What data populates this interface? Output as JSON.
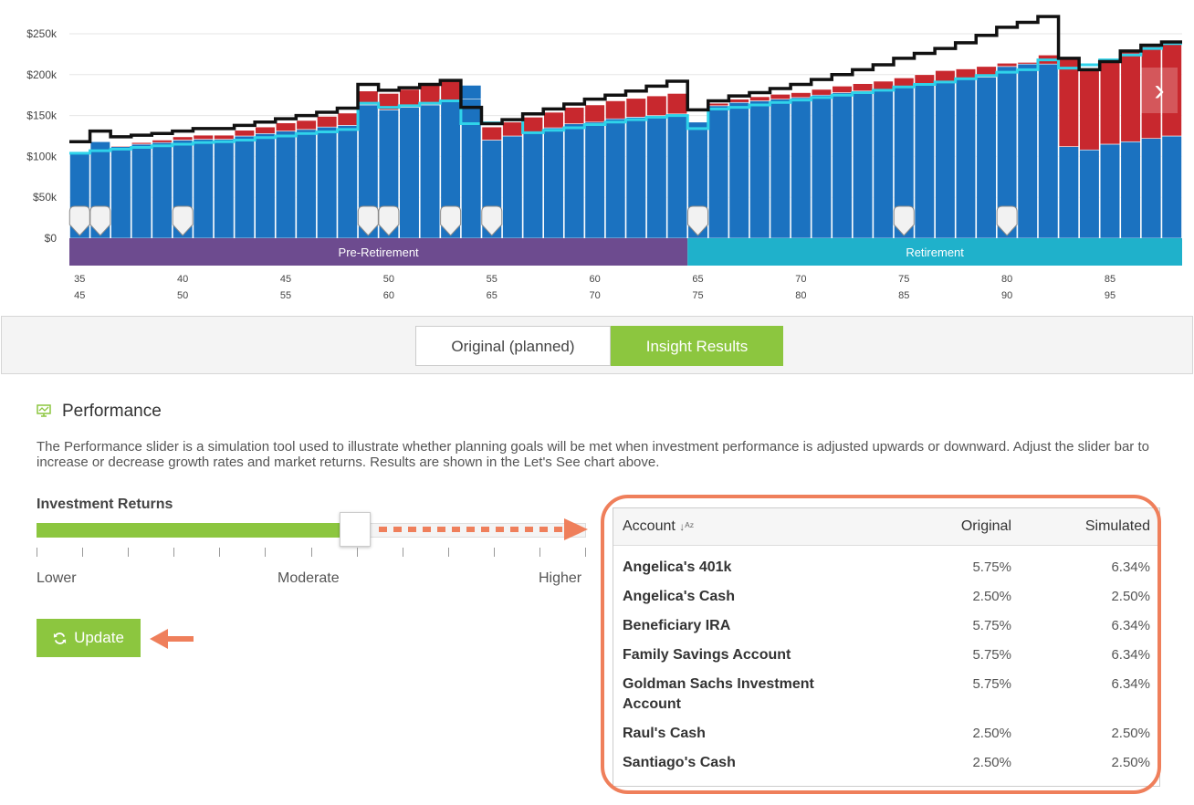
{
  "chart_data": {
    "type": "bar",
    "stacked": true,
    "y_ticks": [
      "$250k",
      "$200k",
      "$150k",
      "$100k",
      "$50k",
      "$0"
    ],
    "ylim": [
      0,
      250000
    ],
    "x_axis_rows": [
      [
        "35",
        "40",
        "45",
        "50",
        "55",
        "60",
        "65",
        "70",
        "75",
        "80",
        "85"
      ],
      [
        "45",
        "50",
        "55",
        "60",
        "65",
        "70",
        "75",
        "80",
        "85",
        "90",
        "95"
      ]
    ],
    "x_start": 35,
    "x_end": 89,
    "phases": [
      {
        "label": "Pre-Retirement",
        "start": 35,
        "end": 65,
        "color": "#6d4b8f"
      },
      {
        "label": "Retirement",
        "start": 65,
        "end": 89,
        "color": "#1fb1cb"
      }
    ],
    "series": [
      {
        "color": "#1b72c0",
        "values": [
          104000,
          118000,
          112000,
          115000,
          117000,
          120000,
          121000,
          121000,
          125000,
          128000,
          131000,
          133000,
          136000,
          138000,
          163000,
          157000,
          160000,
          163000,
          168000,
          170000,
          120000,
          125000,
          130000,
          135000,
          140000,
          142000,
          146000,
          148000,
          150000,
          152000,
          142000,
          162000,
          166000,
          168000,
          170000,
          172000,
          175000,
          178000,
          180000,
          182000,
          185000,
          188000,
          192000,
          195000,
          197000,
          210000,
          213000,
          213000,
          112000,
          108000,
          115000,
          118000,
          122000,
          125000
        ]
      },
      {
        "color": "#c8282e",
        "values": [
          0,
          0,
          1000,
          2000,
          3000,
          4000,
          5000,
          5000,
          7000,
          8000,
          10000,
          11000,
          13000,
          15000,
          17000,
          20000,
          22000,
          24000,
          25000,
          0,
          16000,
          17000,
          18000,
          19000,
          20000,
          21000,
          22000,
          23000,
          24000,
          25000,
          0,
          3000,
          4000,
          5000,
          6000,
          6000,
          7000,
          8000,
          9000,
          10000,
          11000,
          12000,
          13000,
          12000,
          13000,
          4000,
          2000,
          11000,
          108000,
          98000,
          101000,
          111000,
          114000,
          115000
        ]
      },
      {
        "color": "#1b72c0",
        "values": [
          0,
          0,
          0,
          0,
          0,
          0,
          0,
          0,
          0,
          0,
          0,
          0,
          0,
          0,
          0,
          0,
          0,
          0,
          0,
          17000,
          0,
          0,
          0,
          0,
          0,
          0,
          0,
          0,
          0,
          0,
          0,
          0,
          0,
          0,
          0,
          0,
          0,
          0,
          0,
          0,
          0,
          0,
          0,
          0,
          0,
          0,
          0,
          0,
          0,
          0,
          0,
          0,
          0,
          0
        ]
      }
    ],
    "line_series": [
      {
        "color": "#2fd3ea",
        "values": [
          104000,
          107000,
          109000,
          111000,
          113000,
          115000,
          117000,
          118000,
          120000,
          123000,
          125000,
          128000,
          130000,
          133000,
          165000,
          160000,
          162000,
          165000,
          168000,
          140000,
          141000,
          145000,
          129000,
          132000,
          135000,
          139000,
          142000,
          145000,
          148000,
          150000,
          134000,
          158000,
          160000,
          163000,
          166000,
          169000,
          172000,
          175000,
          178000,
          181000,
          185000,
          188000,
          191000,
          195000,
          199000,
          203000,
          206000,
          218000,
          208000,
          212000,
          218000,
          224000,
          232000,
          238000
        ]
      },
      {
        "color": "#111111",
        "values": [
          118000,
          131000,
          124000,
          126000,
          128000,
          131000,
          134000,
          134000,
          138000,
          142000,
          146000,
          150000,
          154000,
          159000,
          188000,
          181000,
          184000,
          188000,
          193000,
          160000,
          140000,
          145000,
          152000,
          158000,
          164000,
          170000,
          175000,
          180000,
          186000,
          192000,
          157000,
          168000,
          174000,
          178000,
          183000,
          188000,
          194000,
          200000,
          206000,
          212000,
          220000,
          226000,
          232000,
          239000,
          248000,
          258000,
          264000,
          271000,
          220000,
          206000,
          216000,
          229000,
          236000,
          240000
        ]
      }
    ],
    "event_markers_at_age": [
      35,
      36,
      40,
      49,
      50,
      53,
      55,
      65,
      75,
      80
    ],
    "title": "",
    "xlabel": "",
    "ylabel": ""
  },
  "nav": {
    "prev_icon": "chevron-left-icon",
    "next_icon": "chevron-right-icon",
    "prev": "‹",
    "next": "›"
  },
  "toggle": {
    "original": "Original (planned)",
    "insight": "Insight Results",
    "active": "insight",
    "active_color": "#8cc63f"
  },
  "performance": {
    "icon": "chart-monitor-icon",
    "title": "Performance",
    "description": "The Performance slider is a simulation tool used to illustrate whether planning goals will be met when investment performance is adjusted upwards or downward. Adjust the slider bar to increase or decrease growth rates and market returns. Results are shown in the Let's See chart above.",
    "slider_label": "Investment Returns",
    "slider_value": 0.58,
    "slider_tick_count": 13,
    "label_lower": "Lower",
    "label_moderate": "Moderate",
    "label_higher": "Higher",
    "update_label": "Update",
    "update_icon": "refresh-icon"
  },
  "table": {
    "columns": {
      "account": "Account",
      "sort_icon": "↓ᴬᶻ",
      "original": "Original",
      "simulated": "Simulated"
    },
    "rows": [
      {
        "account": "Angelica's 401k",
        "original": "5.75%",
        "simulated": "6.34%"
      },
      {
        "account": "Angelica's Cash",
        "original": "2.50%",
        "simulated": "2.50%"
      },
      {
        "account": "Beneficiary IRA",
        "original": "5.75%",
        "simulated": "6.34%"
      },
      {
        "account": "Family Savings Account",
        "original": "5.75%",
        "simulated": "6.34%"
      },
      {
        "account": "Goldman Sachs Investment Account",
        "original": "5.75%",
        "simulated": "6.34%"
      },
      {
        "account": "Raul's Cash",
        "original": "2.50%",
        "simulated": "2.50%"
      },
      {
        "account": "Santiago's Cash",
        "original": "2.50%",
        "simulated": "2.50%"
      }
    ]
  },
  "colors": {
    "accent_green": "#8cc63f",
    "annotation_orange": "#ef7f5b",
    "bar_blue": "#1b72c0",
    "bar_red": "#c8282e"
  }
}
